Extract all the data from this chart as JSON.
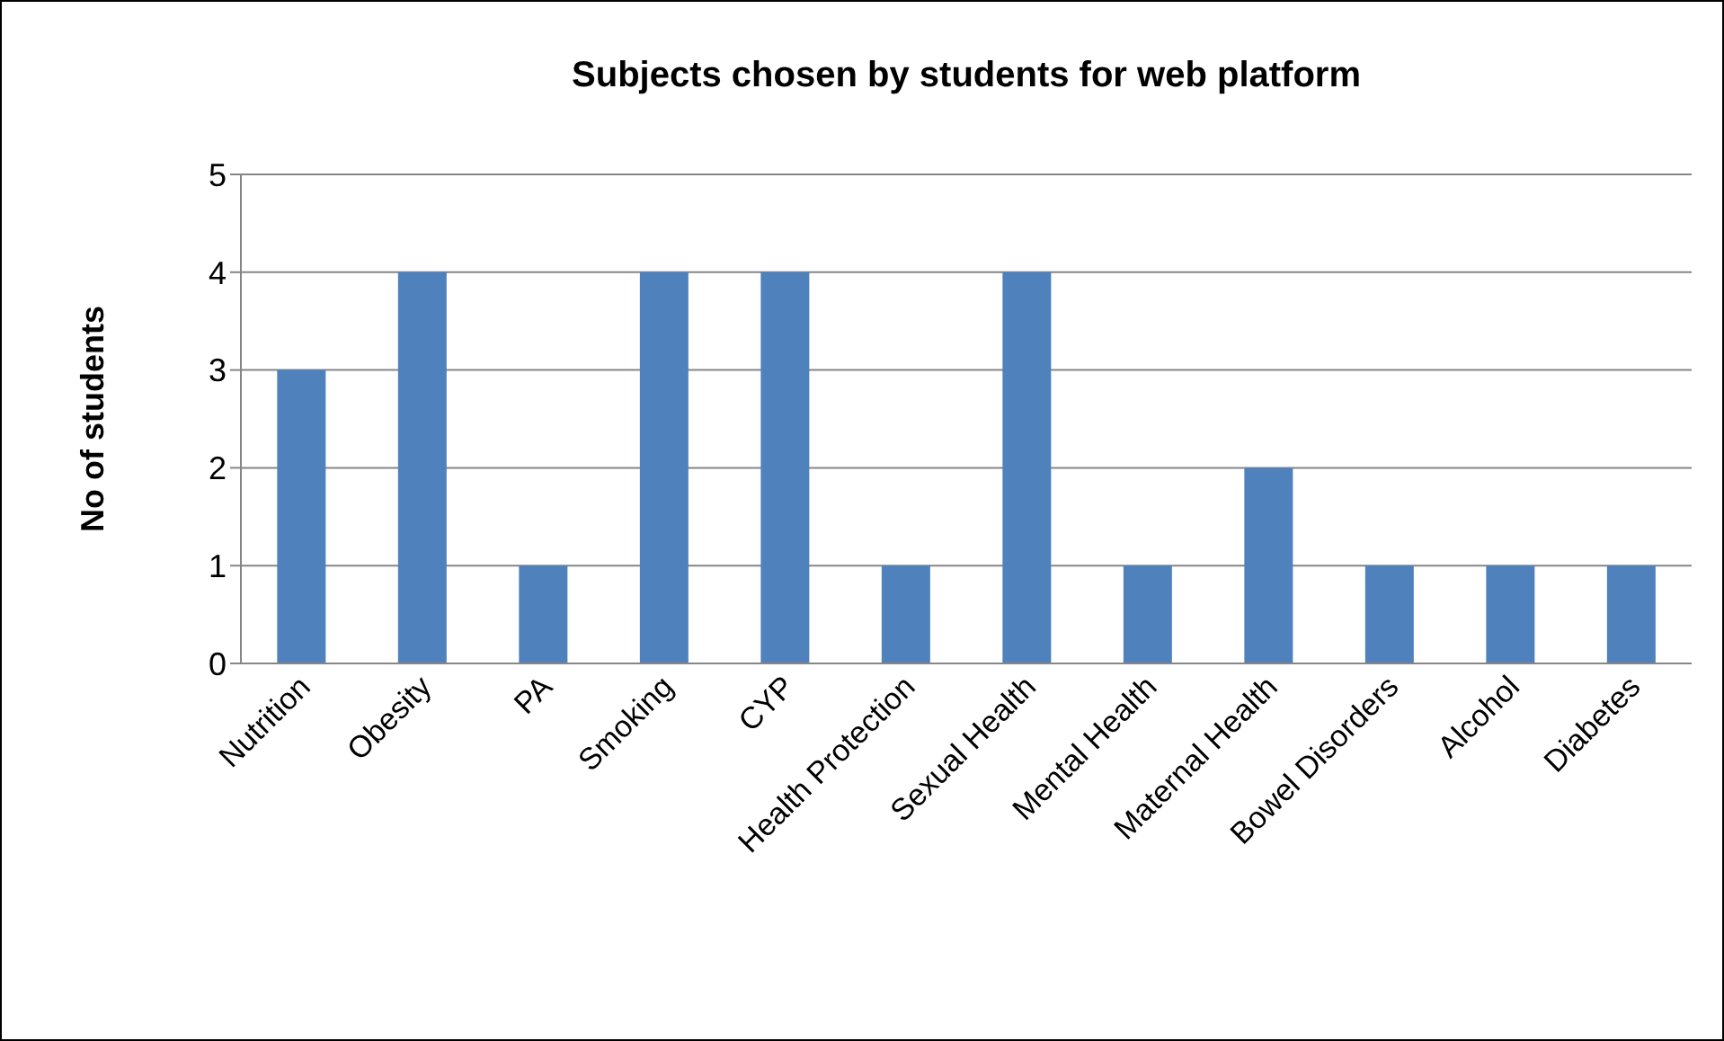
{
  "chart_data": {
    "type": "bar",
    "title": "Subjects chosen by students for web platform",
    "ylabel": "No of students",
    "categories": [
      "Nutrition",
      "Obesity",
      "PA",
      "Smoking",
      "CYP",
      "Health Protection",
      "Sexual Health",
      "Mental Health",
      "Maternal Health",
      "Bowel Disorders",
      "Alcohol",
      "Diabetes"
    ],
    "values": [
      3,
      4,
      1,
      4,
      4,
      1,
      4,
      1,
      2,
      1,
      1,
      1
    ],
    "color": "#4f81bd",
    "ylim": [
      0,
      5
    ],
    "yticks": [
      0,
      1,
      2,
      3,
      4,
      5
    ],
    "grid": "y",
    "legend": false
  }
}
